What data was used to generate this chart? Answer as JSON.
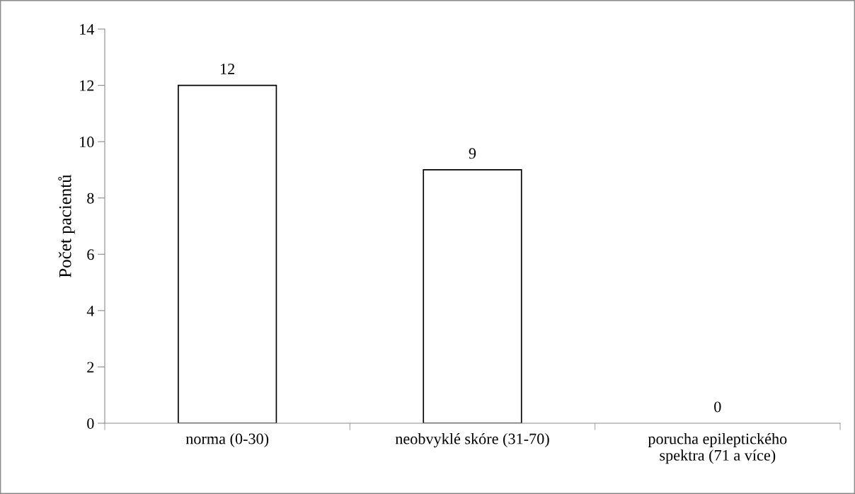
{
  "chart_data": {
    "type": "bar",
    "ylabel": "Počet pacientů",
    "categories": [
      "norma (0-30)",
      "neobvyklé skóre (31-70)",
      "porucha epileptického spektra (71 a více)"
    ],
    "values": [
      12,
      9,
      0
    ],
    "color": "#ffffff",
    "ylim": [
      0,
      14
    ],
    "yticks": [
      0,
      2,
      4,
      6,
      8,
      10,
      12,
      14
    ],
    "grid": false,
    "data_labels": true
  }
}
